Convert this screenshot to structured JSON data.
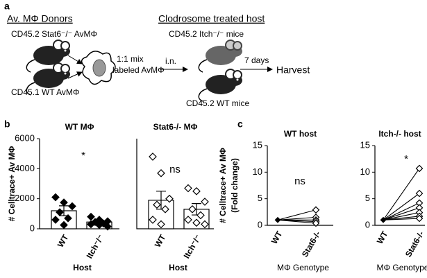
{
  "panel_a": {
    "label": "a",
    "donors_title": "Av. MΦ Donors",
    "donor_1": "CD45.2 Stat6⁻/⁻ AvMΦ",
    "donor_2": "CD45.1 WT AvMΦ",
    "mix_1": "1:1 mix",
    "mix_2": "labeled AvMΦ",
    "route": "i.n.",
    "host_title": "Clodrosome treated host",
    "host_1": "CD45.2 Itch⁻/⁻ mice",
    "host_2": "CD45.2 WT mice",
    "time": "7 days",
    "end": "Harvest"
  },
  "panel_b_label": "b",
  "panel_c_label": "c",
  "chart_data": [
    {
      "type": "bar",
      "title": "WT MΦ",
      "ylabel": "# Celltrace+ Av MΦ",
      "xlabel": "Host",
      "categories": [
        "WT",
        "Itch⁻/⁻"
      ],
      "values": [
        1200,
        450
      ],
      "errors": [
        330,
        110
      ],
      "points": [
        [
          2100,
          1750,
          1500,
          1100,
          700,
          600,
          250
        ],
        [
          800,
          600,
          500,
          450,
          350,
          300,
          250,
          150
        ]
      ],
      "color": "#000000",
      "marker_fill": "#000000",
      "annotation": "*",
      "ylim": [
        0,
        6000
      ],
      "yticks": [
        0,
        2000,
        4000,
        6000
      ]
    },
    {
      "type": "bar",
      "title": "Stat6-/- MΦ",
      "xlabel": "Host",
      "categories": [
        "WT",
        "Itch⁻/⁻"
      ],
      "values": [
        1900,
        1300
      ],
      "errors": [
        600,
        380
      ],
      "points": [
        [
          4800,
          3700,
          2000,
          1600,
          1300,
          600,
          300
        ],
        [
          2700,
          2500,
          1800,
          1300,
          900,
          600,
          400,
          300
        ]
      ],
      "color": "#000000",
      "marker_fill": "#ffffff",
      "annotation": "ns",
      "ylim": [
        0,
        6000
      ]
    },
    {
      "type": "paired",
      "title": "WT host",
      "ylabel": [
        "# Celltrace+ Av MΦ",
        "(Fold change)"
      ],
      "xlabel": "MΦ Genotype",
      "categories": [
        "WT",
        "Stat6-/-"
      ],
      "pairs": [
        [
          1,
          2.9
        ],
        [
          1,
          1.5
        ],
        [
          1,
          1.0
        ],
        [
          1,
          0.7
        ],
        [
          1,
          0.4
        ]
      ],
      "color": "#000000",
      "annotation": "ns",
      "ylim": [
        0,
        15
      ],
      "yticks": [
        0,
        5,
        10,
        15
      ]
    },
    {
      "type": "paired",
      "title": "Itch-/- host",
      "xlabel": "MΦ Genotype",
      "categories": [
        "WT",
        "Stat6-/-"
      ],
      "pairs": [
        [
          1,
          10.7
        ],
        [
          1,
          6.0
        ],
        [
          1,
          4.2
        ],
        [
          1,
          3.3
        ],
        [
          1,
          2.4
        ],
        [
          1,
          1.7
        ],
        [
          1,
          1.3
        ]
      ],
      "color": "#000000",
      "annotation": "*",
      "ylim": [
        0,
        15
      ],
      "yticks": [
        0,
        5,
        10,
        15
      ]
    }
  ]
}
